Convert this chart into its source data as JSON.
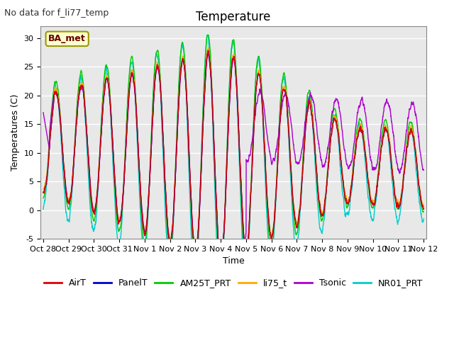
{
  "title": "Temperature",
  "ylabel": "Temperatures (C)",
  "xlabel": "Time",
  "watermark_text": "No data for f_li77_temp",
  "annotation_text": "BA_met",
  "ylim": [
    -5,
    32
  ],
  "yticks": [
    -5,
    0,
    5,
    10,
    15,
    20,
    25,
    30
  ],
  "series_colors": {
    "AirT": "#dd0000",
    "PanelT": "#0000cc",
    "AM25T_PRT": "#00cc00",
    "li75_t": "#ffaa00",
    "Tsonic": "#aa00cc",
    "NR01_PRT": "#00cccc"
  },
  "x_tick_labels": [
    "Oct 28",
    "Oct 29",
    "Oct 30",
    "Oct 31",
    "Nov 1",
    "Nov 2",
    "Nov 3",
    "Nov 4",
    "Nov 5",
    "Nov 6",
    "Nov 7",
    "Nov 8",
    "Nov 9",
    "Nov 10",
    "Nov 11",
    "Nov 12"
  ],
  "plot_bg_color": "#e8e8e8",
  "grid_color": "#ffffff",
  "title_fontsize": 12,
  "label_fontsize": 9,
  "tick_fontsize": 8,
  "legend_fontsize": 9,
  "watermark_fontsize": 9
}
